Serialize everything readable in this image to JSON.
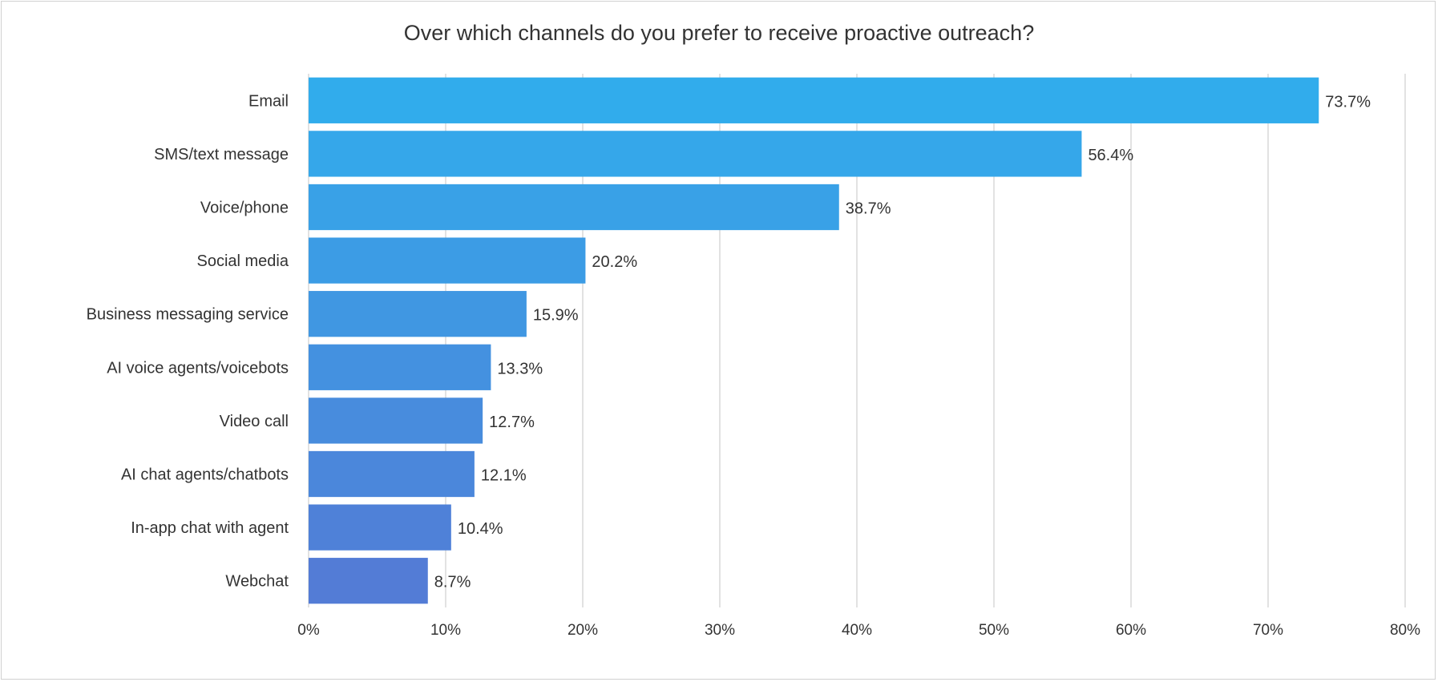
{
  "chart_data": {
    "type": "bar",
    "orientation": "horizontal",
    "title": "Over which channels do you prefer to receive proactive outreach?",
    "xlabel": "",
    "ylabel": "",
    "categories": [
      "Email",
      "SMS/text message",
      "Voice/phone",
      "Social media",
      "Business messaging service",
      "AI voice agents/voicebots",
      "Video call",
      "AI chat agents/chatbots",
      "In-app chat with agent",
      "Webchat"
    ],
    "values": [
      73.7,
      56.4,
      38.7,
      20.2,
      15.9,
      13.3,
      12.7,
      12.1,
      10.4,
      8.7
    ],
    "data_labels": [
      "73.7%",
      "56.4%",
      "38.7%",
      "20.2%",
      "15.9%",
      "13.3%",
      "12.7%",
      "12.1%",
      "10.4%",
      "8.7%"
    ],
    "xlim": [
      0,
      80
    ],
    "ticks": [
      0,
      10,
      20,
      30,
      40,
      50,
      60,
      70,
      80
    ],
    "tick_labels": [
      "0%",
      "10%",
      "20%",
      "30%",
      "40%",
      "50%",
      "60%",
      "70%",
      "80%"
    ],
    "grid": true,
    "legend": "none",
    "colors": {
      "top": "#31ACEC",
      "bottom": "#537CD6",
      "grid": "#D9D9D9"
    }
  }
}
